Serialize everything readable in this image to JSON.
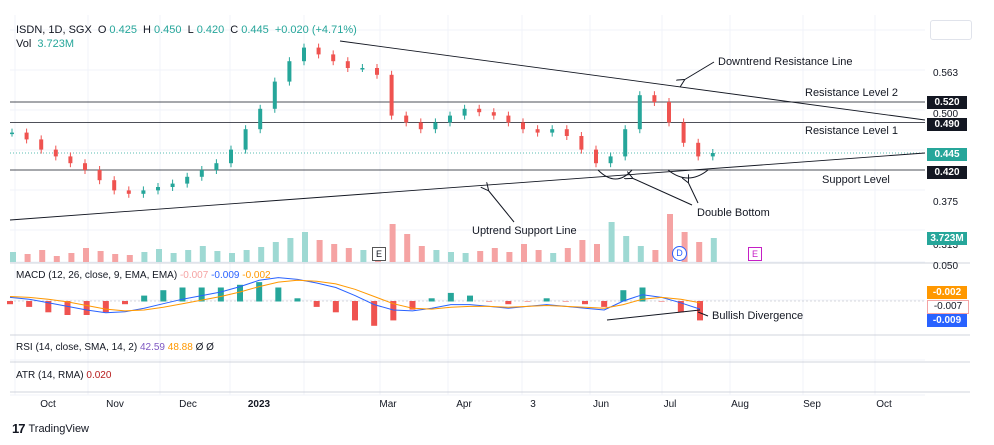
{
  "header": {
    "symbol": "ISDN, 1D, SGX",
    "o_label": "O",
    "o_value": "0.425",
    "h_label": "H",
    "h_value": "0.450",
    "l_label": "L",
    "l_value": "0.420",
    "c_label": "C",
    "c_value": "0.445",
    "change": "+0.020 (+4.71%)",
    "vol_label": "Vol",
    "vol_value": "3.723M"
  },
  "indicators": {
    "macd_label": "MACD (12, 26, close, 9, EMA, EMA)",
    "macd_hist": "-0.007",
    "macd_line": "-0.009",
    "macd_signal": "-0.002",
    "rsi_label": "RSI (14, close, SMA, 14, 2)",
    "rsi_value": "42.59",
    "rsi_ma": "48.88",
    "rsi_extra1": "Ø",
    "rsi_extra2": "Ø",
    "atr_label": "ATR (14, RMA)",
    "atr_value": "0.020"
  },
  "badges": {
    "resistance2": "0.520",
    "resistance1": "0.490",
    "last_price": "0.445",
    "support": "0.420",
    "volume": "3.723M",
    "macd_signal": "-0.002",
    "macd_hist": "-0.007",
    "macd_line": "-0.009"
  },
  "annotations": {
    "downtrend": "Downtrend Resistance Line",
    "res2": "Resistance Level 2",
    "res1": "Resistance Level 1",
    "support": "Support Level",
    "uptrend": "Uptrend Support Line",
    "double_bottom": "Double Bottom",
    "bullish_div": "Bullish Divergence"
  },
  "events": {
    "earnings": "E",
    "dividend": "D",
    "future_earnings": "E"
  },
  "brand": "TradingView",
  "colors": {
    "up": "#26a69a",
    "down": "#ef5350",
    "macd": "#2962ff",
    "signal": "#ff9800",
    "volUp": "#9ed9d3",
    "volDown": "#f5a3a3"
  },
  "chart_data": {
    "type": "line",
    "title": "ISDN, 1D, SGX",
    "x_ticks": [
      "Oct",
      "Nov",
      "Dec",
      "2023",
      "Mar",
      "Apr",
      "3",
      "Jun",
      "Jul",
      "Aug",
      "Sep",
      "Oct"
    ],
    "y_ticks_price": [
      "0.563",
      "0.500",
      "0.375",
      "0.313"
    ],
    "y_ticks_volume": [
      "0.050"
    ],
    "levels": {
      "resistance2": 0.52,
      "resistance1": 0.49,
      "support": 0.42,
      "last": 0.445
    },
    "close_path": [
      0.475,
      0.465,
      0.45,
      0.44,
      0.43,
      0.42,
      0.405,
      0.39,
      0.385,
      0.39,
      0.395,
      0.4,
      0.41,
      0.42,
      0.43,
      0.45,
      0.48,
      0.51,
      0.55,
      0.58,
      0.6,
      0.59,
      0.58,
      0.57,
      0.57,
      0.56,
      0.5,
      0.49,
      0.48,
      0.49,
      0.5,
      0.51,
      0.505,
      0.5,
      0.49,
      0.48,
      0.475,
      0.48,
      0.47,
      0.45,
      0.43,
      0.44,
      0.48,
      0.53,
      0.52,
      0.49,
      0.46,
      0.44,
      0.445
    ],
    "series": [
      {
        "name": "MACD",
        "values": [
          0.004,
          0.002,
          -0.002,
          -0.006,
          -0.01,
          -0.013,
          -0.012,
          -0.008,
          -0.003,
          0.002,
          0.006,
          0.01,
          0.016,
          0.023,
          0.026,
          0.024,
          0.02,
          0.015,
          0.006,
          -0.004,
          -0.01,
          -0.011,
          -0.008,
          -0.004,
          -0.004,
          -0.006,
          -0.008,
          -0.006,
          -0.004,
          -0.006,
          -0.008,
          -0.01,
          0.0,
          0.007,
          0.004,
          -0.002,
          -0.009
        ]
      },
      {
        "name": "Signal",
        "values": [
          0.005,
          0.004,
          0.002,
          -0.001,
          -0.005,
          -0.009,
          -0.011,
          -0.01,
          -0.007,
          -0.003,
          0.001,
          0.005,
          0.01,
          0.016,
          0.021,
          0.023,
          0.022,
          0.019,
          0.013,
          0.005,
          -0.003,
          -0.008,
          -0.009,
          -0.007,
          -0.006,
          -0.006,
          -0.007,
          -0.006,
          -0.005,
          -0.006,
          -0.007,
          -0.008,
          -0.004,
          0.002,
          0.004,
          0.002,
          -0.002
        ]
      }
    ]
  }
}
